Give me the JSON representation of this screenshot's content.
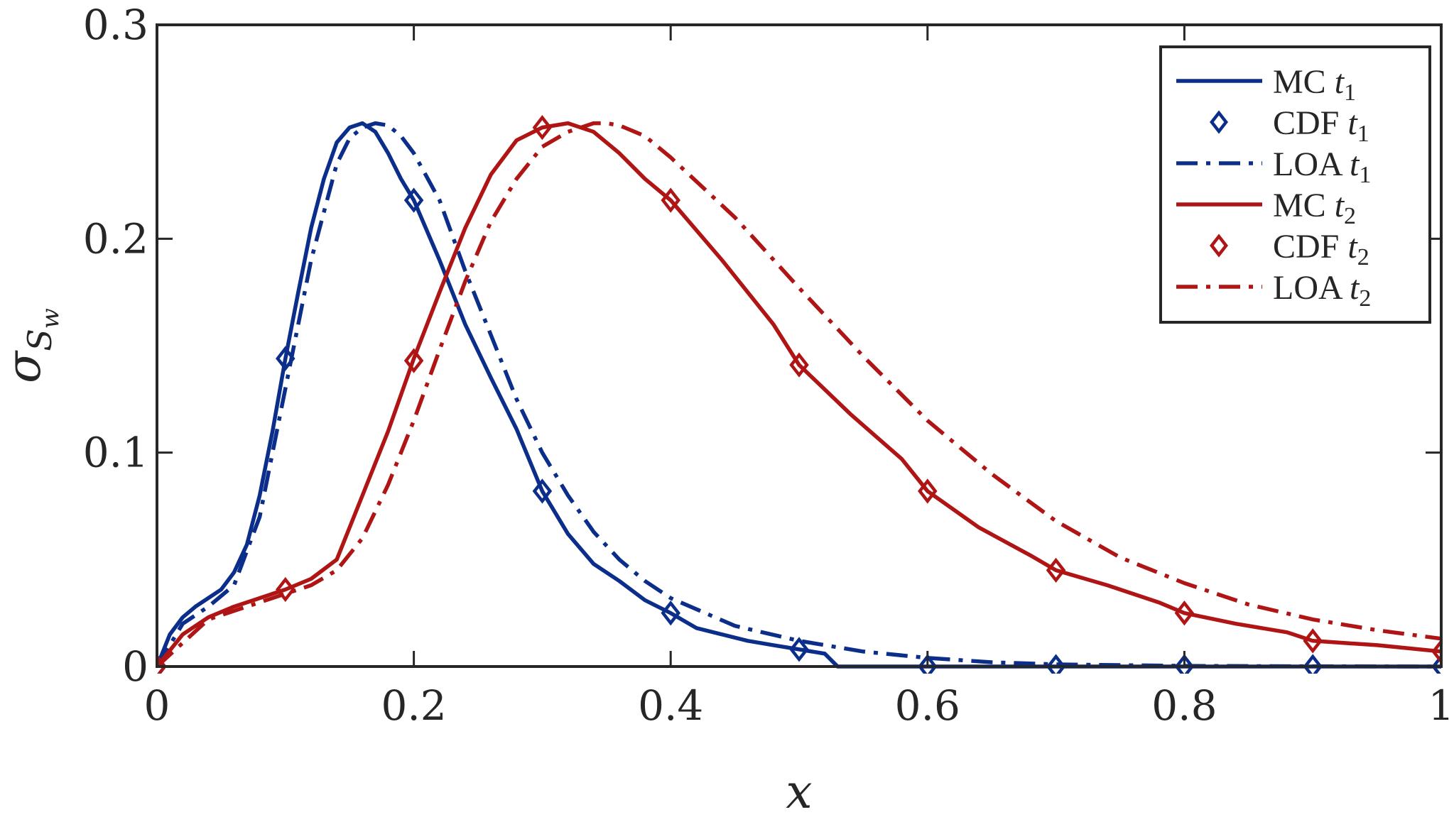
{
  "chart_data": {
    "type": "line",
    "title": "",
    "xlabel": "x",
    "ylabel": {
      "base": "σ",
      "sub": "S",
      "subsub": "w"
    },
    "xlim": [
      0,
      1
    ],
    "ylim": [
      0,
      0.3
    ],
    "x_ticks": [
      0,
      0.2,
      0.4,
      0.6,
      0.8,
      1
    ],
    "x_tick_labels": [
      "0",
      "0.2",
      "0.4",
      "0.6",
      "0.8",
      "1"
    ],
    "y_ticks": [
      0,
      0.1,
      0.2,
      0.3
    ],
    "y_tick_labels": [
      "0",
      "0.1",
      "0.2",
      "0.3"
    ],
    "grid": false,
    "legend_position": "top-right",
    "colors": {
      "blue": "#0b2e8a",
      "red": "#b01515",
      "axis": "#262626"
    },
    "series": [
      {
        "name": "MC t1",
        "label_text": "MC",
        "label_sub": "1",
        "color": "#0b2e8a",
        "style": "solid",
        "x": [
          0,
          0.01,
          0.02,
          0.03,
          0.04,
          0.05,
          0.06,
          0.07,
          0.08,
          0.09,
          0.1,
          0.11,
          0.12,
          0.13,
          0.14,
          0.15,
          0.16,
          0.17,
          0.18,
          0.19,
          0.2,
          0.22,
          0.24,
          0.26,
          0.28,
          0.3,
          0.32,
          0.34,
          0.36,
          0.38,
          0.4,
          0.42,
          0.44,
          0.46,
          0.48,
          0.5,
          0.52,
          0.53,
          0.6,
          0.7,
          0.8,
          0.9,
          1.0
        ],
        "y": [
          0,
          0.015,
          0.023,
          0.028,
          0.032,
          0.036,
          0.044,
          0.057,
          0.08,
          0.11,
          0.144,
          0.175,
          0.205,
          0.228,
          0.245,
          0.252,
          0.254,
          0.25,
          0.24,
          0.228,
          0.218,
          0.19,
          0.16,
          0.135,
          0.111,
          0.082,
          0.062,
          0.048,
          0.04,
          0.031,
          0.025,
          0.018,
          0.015,
          0.012,
          0.01,
          0.008,
          0.006,
          0,
          0,
          0,
          0,
          0,
          0
        ]
      },
      {
        "name": "CDF t1",
        "label_text": "CDF",
        "label_sub": "1",
        "color": "#0b2e8a",
        "style": "marker",
        "x": [
          0,
          0.1,
          0.2,
          0.3,
          0.4,
          0.5,
          0.6,
          0.7,
          0.8,
          0.9,
          1.0
        ],
        "y": [
          0,
          0.144,
          0.218,
          0.082,
          0.025,
          0.008,
          0,
          0,
          0,
          0,
          0
        ]
      },
      {
        "name": "LOA t1",
        "label_text": "LOA",
        "label_sub": "1",
        "color": "#0b2e8a",
        "style": "dashdot",
        "x": [
          0,
          0.02,
          0.04,
          0.06,
          0.08,
          0.1,
          0.12,
          0.14,
          0.15,
          0.16,
          0.17,
          0.18,
          0.19,
          0.2,
          0.22,
          0.24,
          0.26,
          0.28,
          0.3,
          0.32,
          0.34,
          0.36,
          0.38,
          0.4,
          0.45,
          0.5,
          0.55,
          0.6,
          0.65,
          0.7,
          0.8,
          0.9,
          1.0
        ],
        "y": [
          0,
          0.02,
          0.028,
          0.038,
          0.07,
          0.13,
          0.19,
          0.235,
          0.247,
          0.252,
          0.254,
          0.253,
          0.248,
          0.24,
          0.218,
          0.185,
          0.155,
          0.125,
          0.1,
          0.08,
          0.063,
          0.05,
          0.04,
          0.032,
          0.019,
          0.012,
          0.007,
          0.004,
          0.002,
          0.001,
          0.0003,
          0.0001,
          0
        ]
      },
      {
        "name": "MC t2",
        "label_text": "MC",
        "label_sub": "2",
        "color": "#b01515",
        "style": "solid",
        "x": [
          0,
          0.02,
          0.04,
          0.06,
          0.08,
          0.1,
          0.12,
          0.14,
          0.16,
          0.18,
          0.2,
          0.22,
          0.24,
          0.26,
          0.28,
          0.3,
          0.32,
          0.34,
          0.36,
          0.38,
          0.4,
          0.44,
          0.48,
          0.5,
          0.54,
          0.58,
          0.6,
          0.64,
          0.68,
          0.7,
          0.74,
          0.78,
          0.8,
          0.84,
          0.88,
          0.9,
          0.95,
          1.0
        ],
        "y": [
          0,
          0.015,
          0.023,
          0.028,
          0.032,
          0.036,
          0.041,
          0.05,
          0.08,
          0.11,
          0.144,
          0.175,
          0.205,
          0.23,
          0.246,
          0.252,
          0.254,
          0.25,
          0.24,
          0.228,
          0.218,
          0.19,
          0.16,
          0.141,
          0.118,
          0.097,
          0.082,
          0.065,
          0.052,
          0.045,
          0.038,
          0.03,
          0.025,
          0.02,
          0.016,
          0.012,
          0.01,
          0.007
        ]
      },
      {
        "name": "CDF t2",
        "label_text": "CDF",
        "label_sub": "2",
        "color": "#b01515",
        "style": "marker",
        "x": [
          0,
          0.1,
          0.2,
          0.3,
          0.4,
          0.5,
          0.6,
          0.7,
          0.8,
          0.9,
          1.0
        ],
        "y": [
          0,
          0.036,
          0.143,
          0.252,
          0.218,
          0.141,
          0.082,
          0.045,
          0.025,
          0.012,
          0.007
        ]
      },
      {
        "name": "LOA t2",
        "label_text": "LOA",
        "label_sub": "2",
        "color": "#b01515",
        "style": "dashdot",
        "x": [
          0,
          0.04,
          0.08,
          0.12,
          0.14,
          0.16,
          0.18,
          0.2,
          0.22,
          0.24,
          0.26,
          0.28,
          0.3,
          0.32,
          0.34,
          0.35,
          0.36,
          0.38,
          0.4,
          0.45,
          0.5,
          0.55,
          0.6,
          0.65,
          0.7,
          0.75,
          0.8,
          0.85,
          0.9,
          0.95,
          1.0
        ],
        "y": [
          0,
          0.022,
          0.03,
          0.038,
          0.045,
          0.06,
          0.085,
          0.115,
          0.148,
          0.18,
          0.208,
          0.228,
          0.243,
          0.25,
          0.254,
          0.254,
          0.253,
          0.248,
          0.238,
          0.21,
          0.177,
          0.145,
          0.115,
          0.09,
          0.068,
          0.051,
          0.039,
          0.029,
          0.022,
          0.017,
          0.013
        ]
      }
    ]
  }
}
